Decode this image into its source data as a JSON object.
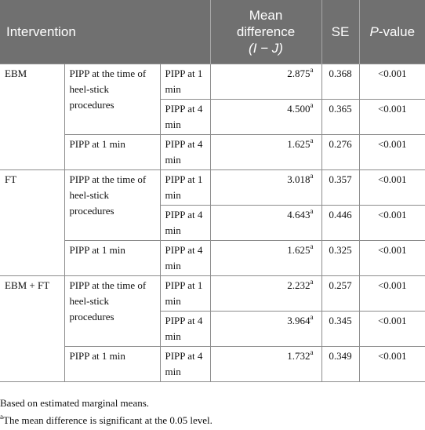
{
  "header": {
    "intervention": "Intervention",
    "mean_diff_line1": "Mean",
    "mean_diff_line2": "difference",
    "mean_diff_line3": "(I − J)",
    "se": "SE",
    "pvalue_p": "P",
    "pvalue_rest": "-value"
  },
  "groups": [
    {
      "name": "EBM",
      "rows": [
        {
          "i": "PIPP at the time of heel-stick procedures",
          "j": "PIPP at 1 min",
          "md": "2.875",
          "sup": "a",
          "se": "0.368",
          "p": "<0.001"
        },
        {
          "i": "",
          "j": "PIPP at 4 min",
          "md": "4.500",
          "sup": "a",
          "se": "0.365",
          "p": "<0.001"
        },
        {
          "i": "PIPP at 1 min",
          "j": "PIPP at 4 min",
          "md": "1.625",
          "sup": "a",
          "se": "0.276",
          "p": "<0.001"
        }
      ]
    },
    {
      "name": "FT",
      "rows": [
        {
          "i": "PIPP at the time of heel-stick procedures",
          "j": "PIPP at 1 min",
          "md": "3.018",
          "sup": "a",
          "se": "0.357",
          "p": "<0.001"
        },
        {
          "i": "",
          "j": "PIPP at 4 min",
          "md": "4.643",
          "sup": "a",
          "se": "0.446",
          "p": "<0.001"
        },
        {
          "i": "PIPP at 1 min",
          "j": "PIPP at 4 min",
          "md": "1.625",
          "sup": "a",
          "se": "0.325",
          "p": "<0.001"
        }
      ]
    },
    {
      "name": "EBM + FT",
      "rows": [
        {
          "i": "PIPP at the time of heel-stick procedures",
          "j": "PIPP at 1 min",
          "md": "2.232",
          "sup": "a",
          "se": "0.257",
          "p": "<0.001"
        },
        {
          "i": "",
          "j": "PIPP at 4 min",
          "md": "3.964",
          "sup": "a",
          "se": "0.345",
          "p": "<0.001"
        },
        {
          "i": "PIPP at 1 min",
          "j": "PIPP at 4 min",
          "md": "1.732",
          "sup": "a",
          "se": "0.349",
          "p": "<0.001"
        }
      ]
    }
  ],
  "notes": {
    "line1": "Based on estimated marginal means.",
    "line2_sup": "a",
    "line2": "The mean difference is significant at the 0.05 level."
  },
  "colors": {
    "header_bg": "#707070",
    "header_text": "#ffffff",
    "border": "#8c8c8c"
  }
}
